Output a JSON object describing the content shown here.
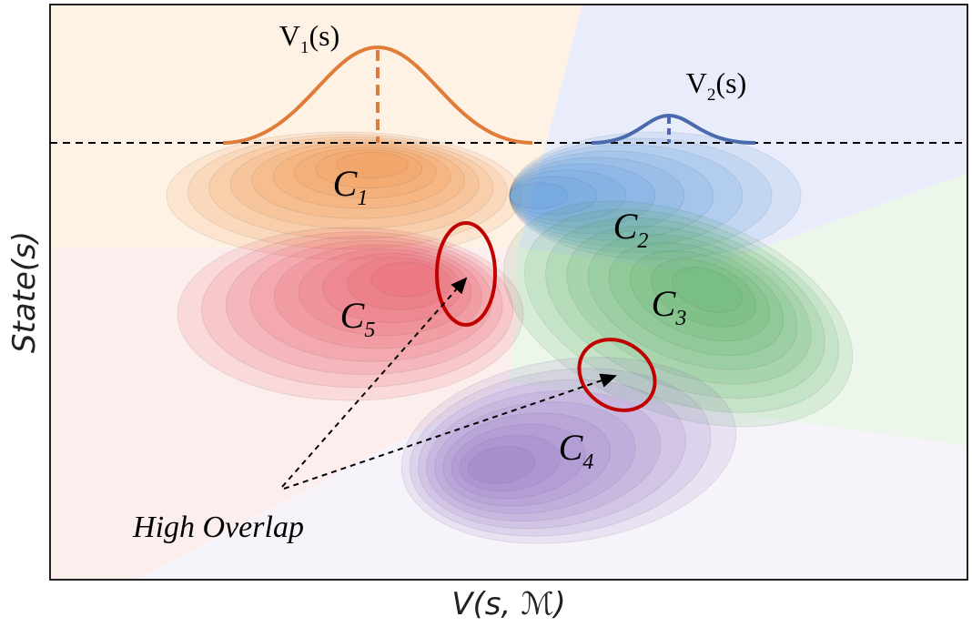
{
  "figure": {
    "peaks": [
      {
        "base": "V",
        "sub": "1",
        "rest": "(s)"
      },
      {
        "base": "V",
        "sub": "2",
        "rest": "(s)"
      }
    ],
    "clusters": [
      {
        "base": "C",
        "sub": "1"
      },
      {
        "base": "C",
        "sub": "2"
      },
      {
        "base": "C",
        "sub": "3"
      },
      {
        "base": "C",
        "sub": "4"
      },
      {
        "base": "C",
        "sub": "5"
      }
    ],
    "annotation": "High Overlap",
    "x_label": "V(s, ℳ)",
    "y_label": "State(s)"
  }
}
